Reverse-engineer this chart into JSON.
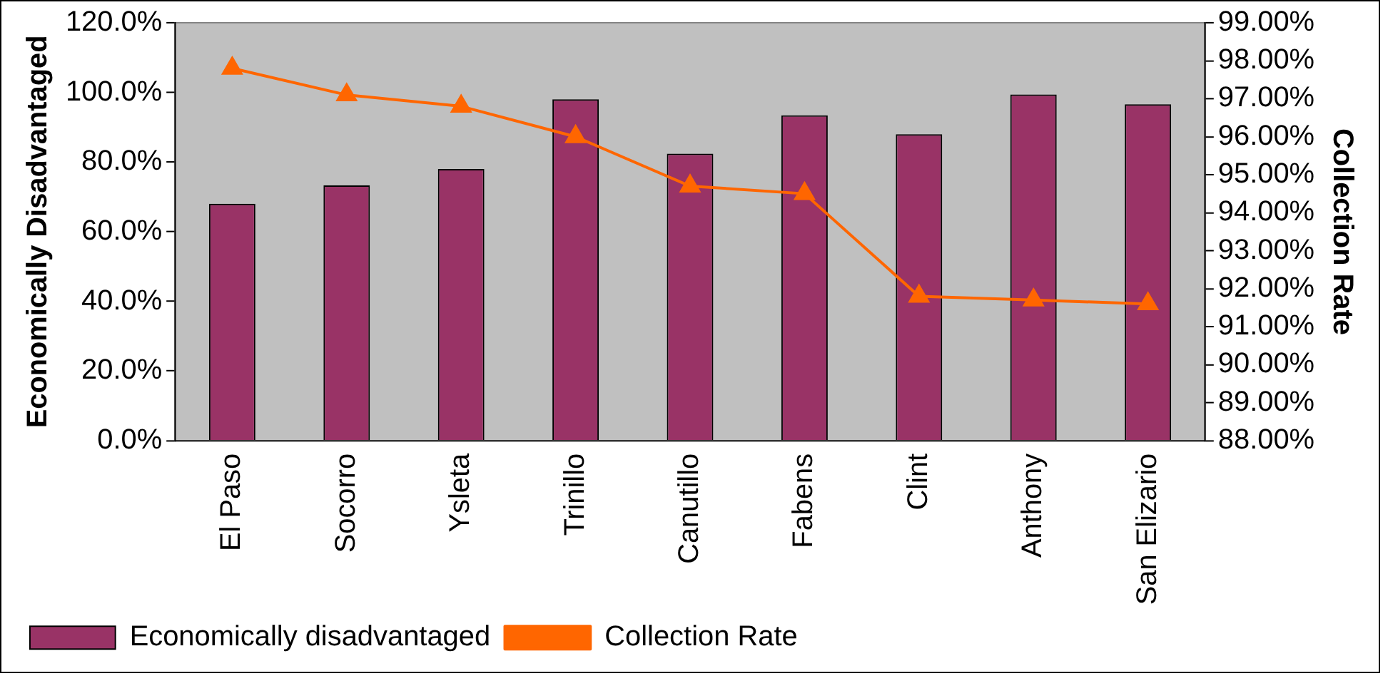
{
  "chart_data": {
    "type": "bar",
    "categories": [
      "El Paso",
      "Socorro",
      "Ysleta",
      "Trinillo",
      "Canutillo",
      "Fabens",
      "Clint",
      "Anthony",
      "San Elizario"
    ],
    "series": [
      {
        "name": "Economically disadvantaged",
        "color": "#993366",
        "values": [
          68,
          73.3,
          78,
          98,
          82.4,
          93.4,
          88,
          99.4,
          96.6
        ]
      },
      {
        "name": "Collection Rate",
        "type": "line",
        "axis": "y2",
        "color": "#ff6600",
        "values": [
          97.8,
          97.1,
          96.8,
          96.0,
          94.7,
          94.5,
          91.8,
          91.7,
          91.6
        ]
      }
    ],
    "ylabel": "Economically Disadvantaged",
    "y2label": "Collection Rate",
    "ylim": [
      0,
      120
    ],
    "yticks": [
      {
        "value": 0,
        "label": "0.0%"
      },
      {
        "value": 20,
        "label": "20.0%"
      },
      {
        "value": 40,
        "label": "40.0%"
      },
      {
        "value": 60,
        "label": "60.0%"
      },
      {
        "value": 80,
        "label": "80.0%"
      },
      {
        "value": 100,
        "label": "100.0%"
      },
      {
        "value": 120,
        "label": "120.0%"
      }
    ],
    "y2lim": [
      88,
      99
    ],
    "y2ticks": [
      {
        "value": 88,
        "label": "88.00%"
      },
      {
        "value": 89,
        "label": "89.00%"
      },
      {
        "value": 90,
        "label": "90.00%"
      },
      {
        "value": 91,
        "label": "91.00%"
      },
      {
        "value": 92,
        "label": "92.00%"
      },
      {
        "value": 93,
        "label": "93.00%"
      },
      {
        "value": 94,
        "label": "94.00%"
      },
      {
        "value": 95,
        "label": "95.00%"
      },
      {
        "value": 96,
        "label": "96.00%"
      },
      {
        "value": 97,
        "label": "97.00%"
      },
      {
        "value": 98,
        "label": "98.00%"
      },
      {
        "value": 99,
        "label": "99.00%"
      }
    ],
    "marker": "triangle",
    "grid": false,
    "legend": "bottom"
  }
}
